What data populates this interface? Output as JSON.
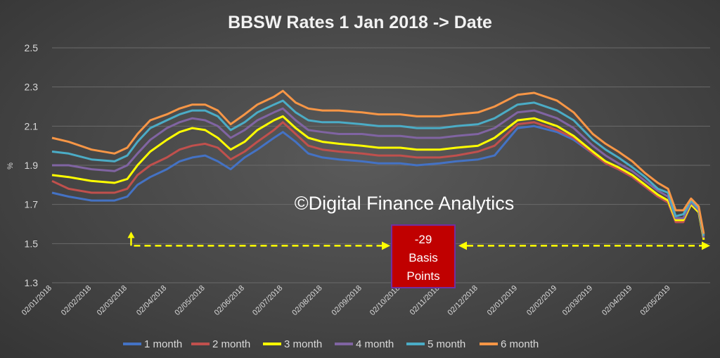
{
  "chart_data": {
    "type": "line",
    "title": "BBSW Rates 1 Jan 2018 -> Date",
    "ylabel": "%",
    "xlabel": "",
    "ylim": [
      1.3,
      2.5
    ],
    "yticks": [
      1.3,
      1.5,
      1.7,
      1.9,
      2.1,
      2.3,
      2.5
    ],
    "xlim": [
      "2018-01-02",
      "2019-06-02"
    ],
    "xticks": [
      {
        "date": "2018-01-02",
        "label": "02/01/2018"
      },
      {
        "date": "2018-02-02",
        "label": "02/02/2018"
      },
      {
        "date": "2018-03-02",
        "label": "02/03/2018"
      },
      {
        "date": "2018-04-02",
        "label": "02/04/2018"
      },
      {
        "date": "2018-05-02",
        "label": "02/05/2018"
      },
      {
        "date": "2018-06-02",
        "label": "02/06/2018"
      },
      {
        "date": "2018-07-02",
        "label": "02/07/2018"
      },
      {
        "date": "2018-08-02",
        "label": "02/08/2018"
      },
      {
        "date": "2018-09-02",
        "label": "02/09/2018"
      },
      {
        "date": "2018-10-02",
        "label": "02/10/2018"
      },
      {
        "date": "2018-11-02",
        "label": "02/11/2018"
      },
      {
        "date": "2018-12-02",
        "label": "02/12/2018"
      },
      {
        "date": "2019-01-02",
        "label": "02/01/2019"
      },
      {
        "date": "2019-02-02",
        "label": "02/02/2019"
      },
      {
        "date": "2019-03-02",
        "label": "02/03/2019"
      },
      {
        "date": "2019-04-02",
        "label": "02/04/2019"
      },
      {
        "date": "2019-05-02",
        "label": "02/05/2019"
      }
    ],
    "grid": true,
    "legend_position": "bottom",
    "x": [
      "2018-01-02",
      "2018-01-15",
      "2018-02-02",
      "2018-02-20",
      "2018-03-02",
      "2018-03-10",
      "2018-03-20",
      "2018-04-02",
      "2018-04-12",
      "2018-04-22",
      "2018-05-02",
      "2018-05-12",
      "2018-05-22",
      "2018-06-02",
      "2018-06-12",
      "2018-06-25",
      "2018-07-02",
      "2018-07-12",
      "2018-07-22",
      "2018-08-02",
      "2018-08-15",
      "2018-09-02",
      "2018-09-15",
      "2018-10-02",
      "2018-10-15",
      "2018-11-02",
      "2018-11-15",
      "2018-12-02",
      "2018-12-15",
      "2019-01-02",
      "2019-01-15",
      "2019-02-02",
      "2019-02-15",
      "2019-03-02",
      "2019-03-12",
      "2019-03-22",
      "2019-04-02",
      "2019-04-12",
      "2019-04-22",
      "2019-04-30",
      "2019-05-06",
      "2019-05-12",
      "2019-05-18",
      "2019-05-24",
      "2019-05-28"
    ],
    "series": [
      {
        "name": "1 month",
        "color": "#4472C4",
        "values": [
          1.76,
          1.74,
          1.72,
          1.72,
          1.74,
          1.8,
          1.84,
          1.88,
          1.92,
          1.94,
          1.95,
          1.92,
          1.88,
          1.94,
          1.98,
          2.04,
          2.07,
          2.02,
          1.96,
          1.94,
          1.93,
          1.92,
          1.91,
          1.91,
          1.9,
          1.91,
          1.92,
          1.93,
          1.95,
          2.09,
          2.1,
          2.07,
          2.03,
          1.96,
          1.91,
          1.88,
          1.84,
          1.79,
          1.74,
          1.71,
          1.61,
          1.61,
          1.7,
          1.66,
          1.52
        ]
      },
      {
        "name": "2 month",
        "color": "#C0504D",
        "values": [
          1.82,
          1.78,
          1.76,
          1.76,
          1.78,
          1.85,
          1.9,
          1.94,
          1.98,
          2.0,
          2.01,
          1.99,
          1.93,
          1.97,
          2.02,
          2.08,
          2.12,
          2.06,
          2.0,
          1.98,
          1.97,
          1.96,
          1.95,
          1.95,
          1.94,
          1.94,
          1.95,
          1.97,
          2.0,
          2.11,
          2.12,
          2.08,
          2.04,
          1.96,
          1.91,
          1.88,
          1.84,
          1.79,
          1.74,
          1.71,
          1.61,
          1.61,
          1.7,
          1.66,
          1.52
        ]
      },
      {
        "name": "3 month",
        "color": "#FFFF00",
        "values": [
          1.85,
          1.84,
          1.82,
          1.81,
          1.83,
          1.9,
          1.97,
          2.03,
          2.07,
          2.09,
          2.08,
          2.04,
          1.98,
          2.02,
          2.08,
          2.13,
          2.15,
          2.09,
          2.04,
          2.02,
          2.01,
          2.0,
          1.99,
          1.99,
          1.98,
          1.98,
          1.99,
          2.0,
          2.04,
          2.13,
          2.14,
          2.1,
          2.05,
          1.97,
          1.92,
          1.89,
          1.85,
          1.8,
          1.75,
          1.72,
          1.62,
          1.62,
          1.7,
          1.66,
          1.52
        ]
      },
      {
        "name": "4 month",
        "color": "#8064A2",
        "values": [
          1.9,
          1.9,
          1.88,
          1.87,
          1.9,
          1.96,
          2.03,
          2.09,
          2.12,
          2.14,
          2.13,
          2.1,
          2.04,
          2.08,
          2.13,
          2.17,
          2.19,
          2.13,
          2.08,
          2.07,
          2.06,
          2.06,
          2.05,
          2.05,
          2.04,
          2.04,
          2.05,
          2.06,
          2.09,
          2.17,
          2.18,
          2.14,
          2.09,
          2.0,
          1.95,
          1.91,
          1.87,
          1.82,
          1.77,
          1.74,
          1.63,
          1.63,
          1.71,
          1.67,
          1.53
        ]
      },
      {
        "name": "5 month",
        "color": "#4BACC6",
        "values": [
          1.97,
          1.96,
          1.93,
          1.92,
          1.95,
          2.02,
          2.09,
          2.13,
          2.16,
          2.18,
          2.18,
          2.15,
          2.08,
          2.12,
          2.17,
          2.21,
          2.23,
          2.17,
          2.13,
          2.12,
          2.12,
          2.11,
          2.1,
          2.1,
          2.09,
          2.09,
          2.1,
          2.11,
          2.14,
          2.21,
          2.22,
          2.18,
          2.13,
          2.03,
          1.98,
          1.94,
          1.89,
          1.84,
          1.78,
          1.76,
          1.64,
          1.65,
          1.72,
          1.68,
          1.54
        ]
      },
      {
        "name": "6 month",
        "color": "#F79646",
        "values": [
          2.04,
          2.02,
          1.98,
          1.96,
          1.99,
          2.06,
          2.13,
          2.16,
          2.19,
          2.21,
          2.21,
          2.18,
          2.11,
          2.16,
          2.21,
          2.25,
          2.28,
          2.22,
          2.19,
          2.18,
          2.18,
          2.17,
          2.16,
          2.16,
          2.15,
          2.15,
          2.16,
          2.17,
          2.2,
          2.26,
          2.27,
          2.23,
          2.17,
          2.06,
          2.01,
          1.97,
          1.92,
          1.86,
          1.81,
          1.78,
          1.67,
          1.67,
          1.73,
          1.69,
          1.55
        ]
      }
    ],
    "annotations": {
      "watermark": "©Digital Finance Analytics",
      "box_lines": [
        "-29",
        "Basis",
        "Points"
      ],
      "box_color": "#C00000",
      "arrow_color": "#FFFF00",
      "arrow_y": 1.5,
      "arrow_from": "2018-03-05",
      "arrow_to": "2019-06-02"
    }
  }
}
